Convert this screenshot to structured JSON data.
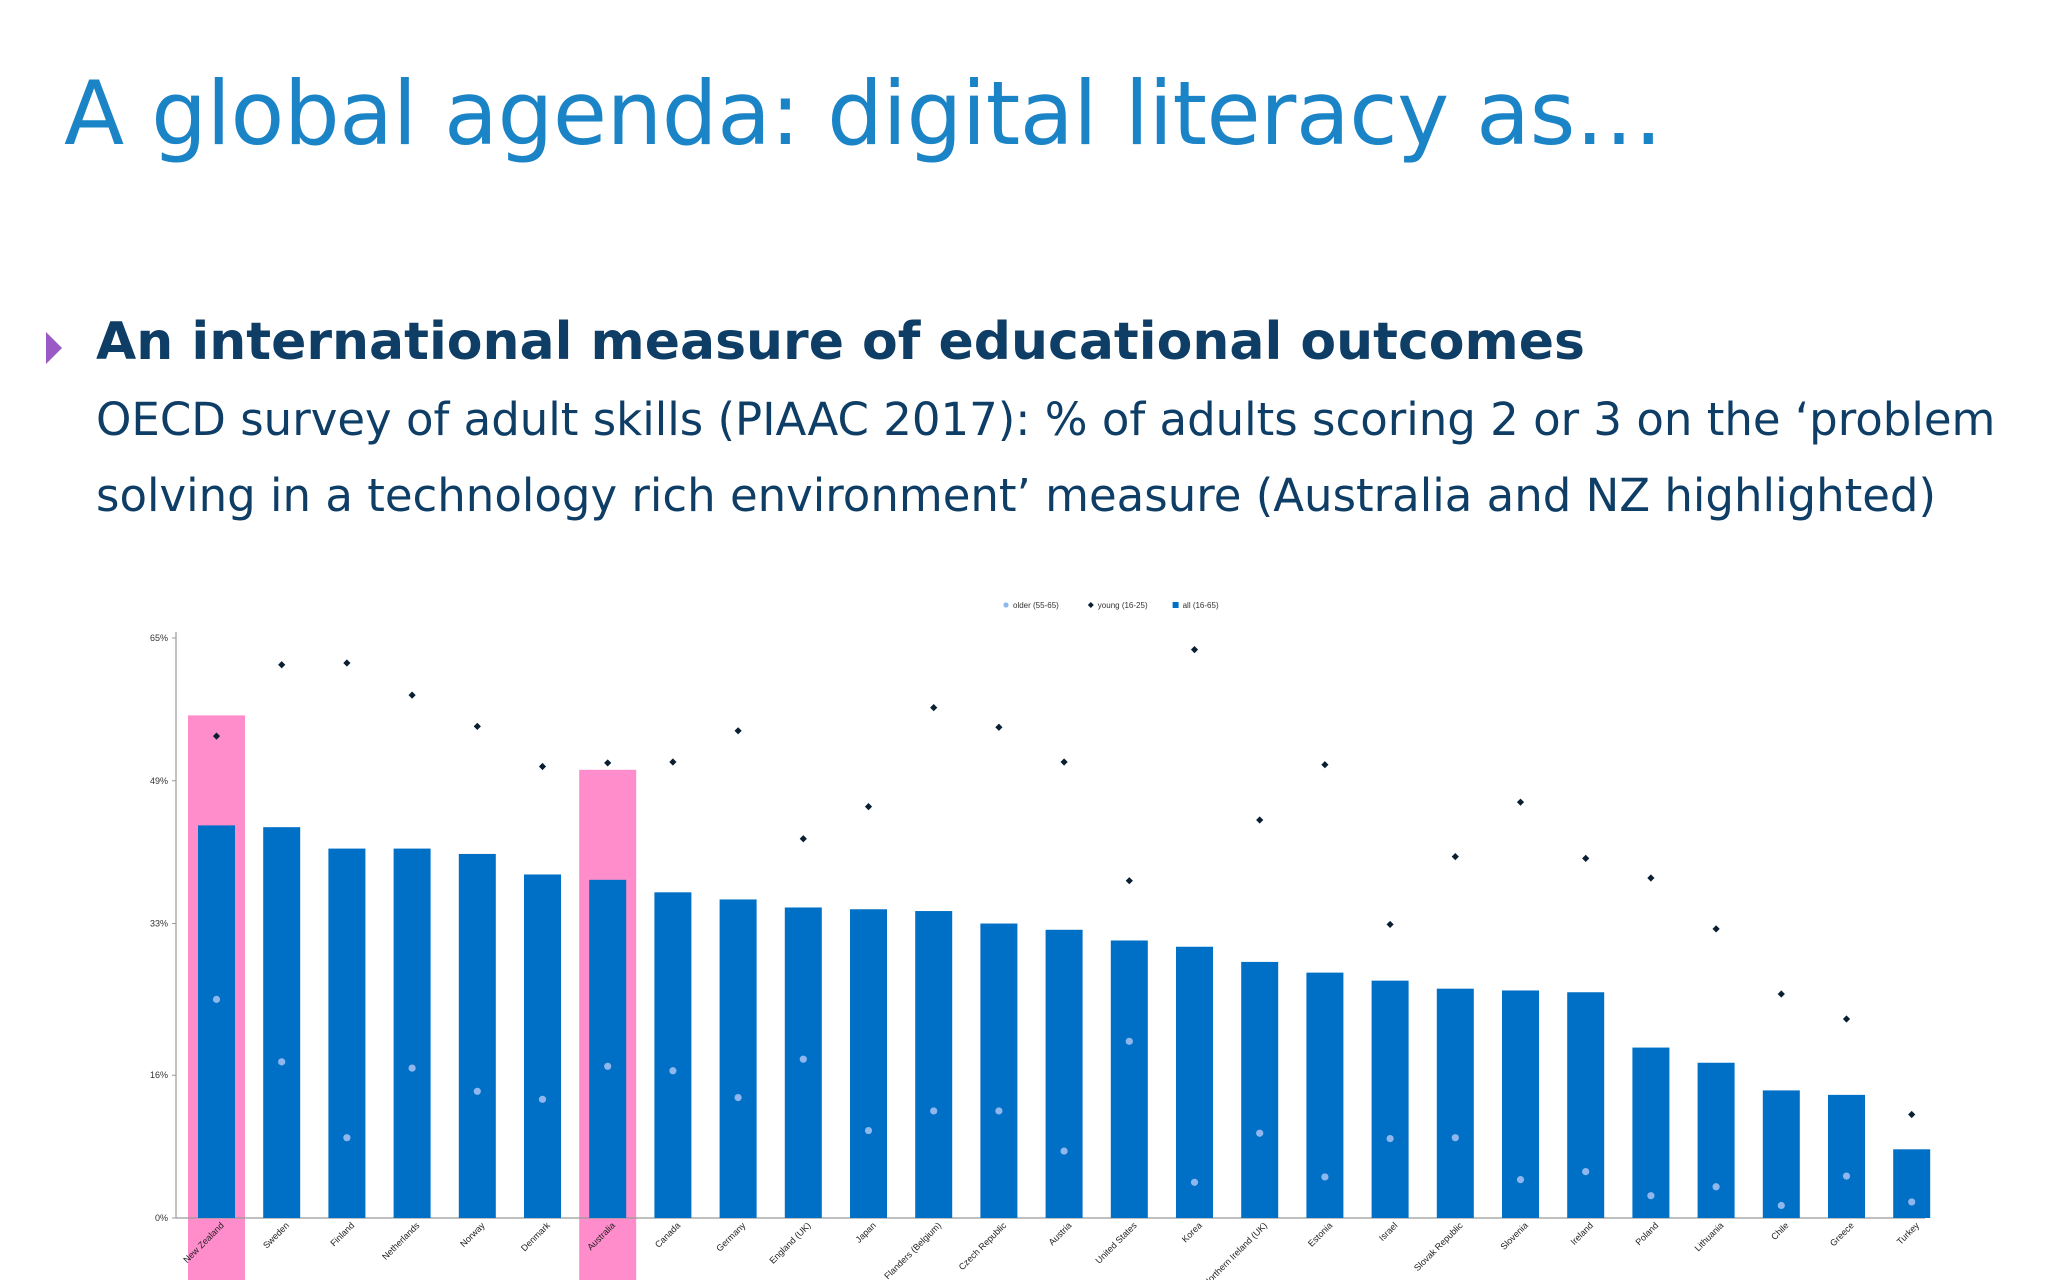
{
  "slide": {
    "title": "A global agenda: digital literacy as…",
    "bullet_heading": "An international measure of educational outcomes",
    "bullet_line1": "OECD survey of adult skills (PIAAC 2017): % of adults scoring 2 or 3 on the ‘problem",
    "bullet_line2": "solving in a technology rich environment’ measure (Australia and NZ highlighted)"
  },
  "chart_data": {
    "type": "bar",
    "title": "",
    "xlabel": "",
    "ylabel": "",
    "ylim": [
      0,
      65
    ],
    "yticks": [
      0,
      16,
      33,
      49,
      65
    ],
    "ytick_labels": [
      "0%",
      "16%",
      "33%",
      "49%",
      "65%"
    ],
    "grid": false,
    "legend_position": "top-center",
    "highlighted": [
      "New Zealand",
      "Australia"
    ],
    "highlight_color": "#ff8ccb",
    "categories": [
      "New Zealand",
      "Sweden",
      "Finland",
      "Netherlands",
      "Norway",
      "Denmark",
      "Australia",
      "Canada",
      "Germany",
      "England (UK)",
      "Japan",
      "Flanders (Belgium)",
      "Czech Republic",
      "Austria",
      "United States",
      "Korea",
      "Northern Ireland (UK)",
      "Estonia",
      "Israel",
      "Slovak Republic",
      "Slovenia",
      "Ireland",
      "Poland",
      "Lithuania",
      "Chile",
      "Greece",
      "Turkey"
    ],
    "series": [
      {
        "name": "older (55-65)",
        "kind": "dot",
        "color": "#8fb7ee",
        "values": [
          24.5,
          17.5,
          9,
          16.8,
          14.2,
          13.3,
          17,
          16.5,
          13.5,
          17.8,
          9.8,
          12,
          12,
          7.5,
          19.8,
          4,
          9.5,
          4.6,
          8.9,
          9,
          4.3,
          5.2,
          2.5,
          3.5,
          1.4,
          4.7,
          1.8
        ]
      },
      {
        "name": "young (16-25)",
        "kind": "diamond",
        "color": "#0b1f33",
        "values": [
          54,
          62,
          62.2,
          58.6,
          55.1,
          50.6,
          51,
          51.1,
          54.6,
          42.5,
          46.1,
          57.2,
          55,
          51.1,
          37.8,
          63.7,
          44.6,
          50.8,
          32.9,
          40.5,
          46.6,
          40.3,
          38.1,
          32.4,
          25.1,
          22.3,
          11.6
        ]
      },
      {
        "name": "all (16-65)",
        "kind": "bar",
        "color": "#0070c6",
        "values": [
          44,
          43.8,
          41.4,
          41.4,
          40.8,
          38.5,
          37.9,
          36.5,
          35.7,
          34.8,
          34.6,
          34.4,
          33,
          32.3,
          31.1,
          30.4,
          28.7,
          27.5,
          26.6,
          25.7,
          25.5,
          25.3,
          19.1,
          17.4,
          14.3,
          13.8,
          7.7
        ]
      }
    ]
  }
}
